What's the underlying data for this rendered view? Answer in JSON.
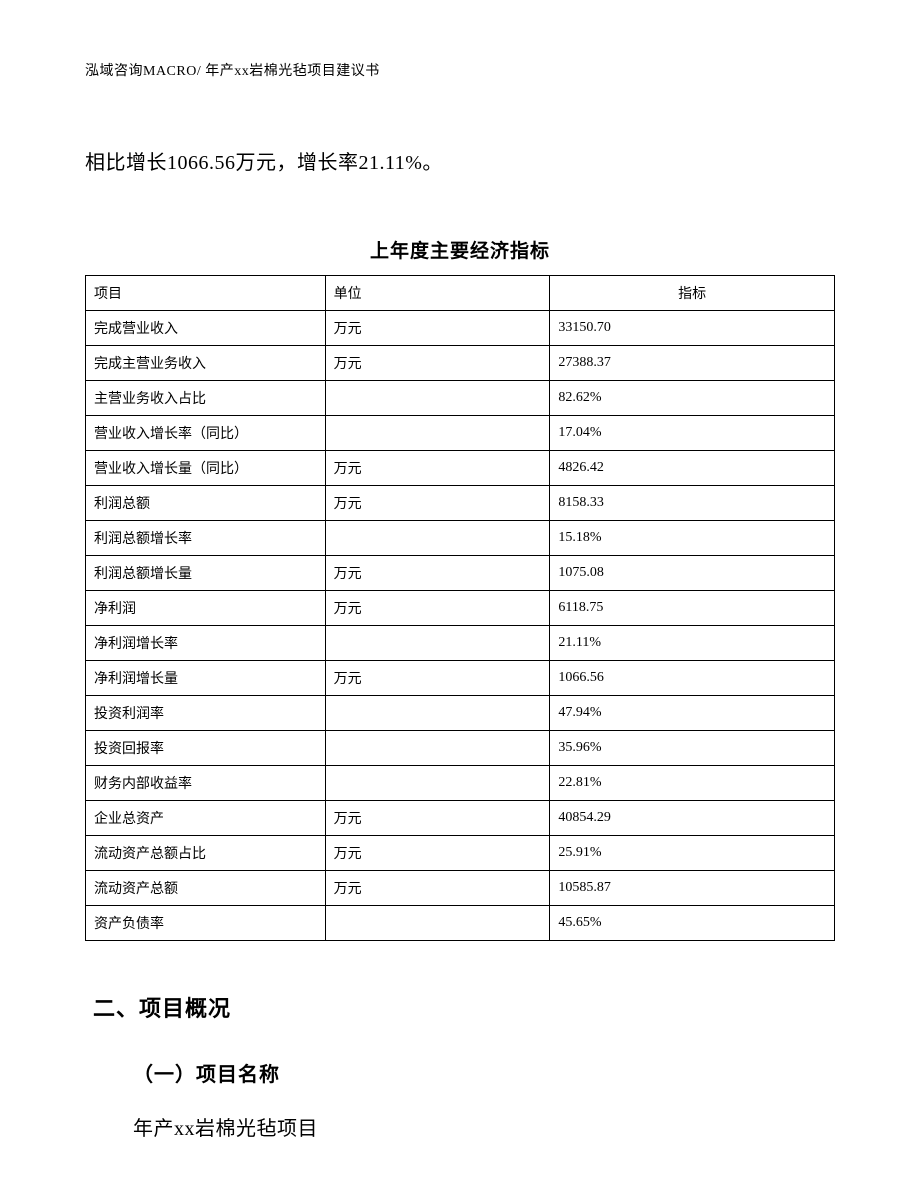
{
  "header": "泓域咨询MACRO/ 年产xx岩棉光毡项目建议书",
  "paragraph": "相比增长1066.56万元，增长率21.11%。",
  "table": {
    "title": "上年度主要经济指标",
    "columns": [
      "项目",
      "单位",
      "指标"
    ],
    "rows": [
      [
        "完成营业收入",
        "万元",
        "33150.70"
      ],
      [
        "完成主营业务收入",
        "万元",
        "27388.37"
      ],
      [
        "主营业务收入占比",
        "",
        "82.62%"
      ],
      [
        "营业收入增长率（同比）",
        "",
        "17.04%"
      ],
      [
        "营业收入增长量（同比）",
        "万元",
        "4826.42"
      ],
      [
        "利润总额",
        "万元",
        "8158.33"
      ],
      [
        "利润总额增长率",
        "",
        "15.18%"
      ],
      [
        "利润总额增长量",
        "万元",
        "1075.08"
      ],
      [
        "净利润",
        "万元",
        "6118.75"
      ],
      [
        "净利润增长率",
        "",
        "21.11%"
      ],
      [
        "净利润增长量",
        "万元",
        "1066.56"
      ],
      [
        "投资利润率",
        "",
        "47.94%"
      ],
      [
        "投资回报率",
        "",
        "35.96%"
      ],
      [
        "财务内部收益率",
        "",
        "22.81%"
      ],
      [
        "企业总资产",
        "万元",
        "40854.29"
      ],
      [
        "流动资产总额占比",
        "万元",
        "25.91%"
      ],
      [
        "流动资产总额",
        "万元",
        "10585.87"
      ],
      [
        "资产负债率",
        "",
        "45.65%"
      ]
    ]
  },
  "section2": {
    "heading": "二、项目概况",
    "sub1": {
      "heading": "（一）项目名称",
      "text": "年产xx岩棉光毡项目"
    }
  }
}
